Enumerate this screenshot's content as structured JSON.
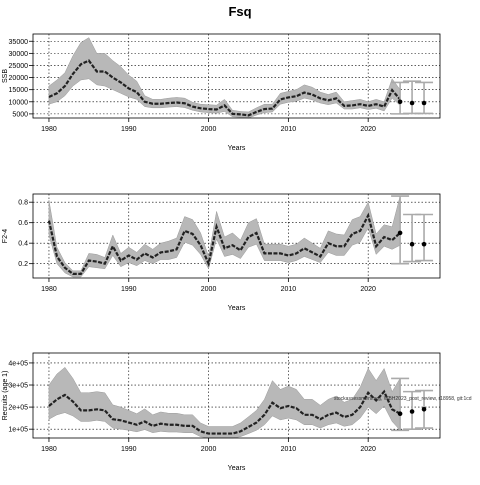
{
  "title": "Fsq",
  "source_note": "stockassessment.org, WBH2023_post_review, r18958, git:1cd",
  "colors": {
    "band": "#b8b8b8",
    "band_edge": "#9a9a9a",
    "line": "#222222",
    "forecast": "#aaaaaa",
    "grid": "#000000"
  },
  "chart_data": [
    {
      "type": "line",
      "ylabel": "SSB",
      "xlabel": "Years",
      "xlim": [
        1978,
        2029
      ],
      "ylim": [
        3300,
        38000
      ],
      "xticks": [
        1980,
        1990,
        2000,
        2010,
        2020
      ],
      "yticks": [
        5000,
        10000,
        15000,
        20000,
        25000,
        30000,
        35000
      ],
      "ytick_labels": [
        "5000",
        "10000",
        "15000",
        "20000",
        "25000",
        "30000",
        "35000"
      ],
      "grid": true,
      "x": [
        1980,
        1981,
        1982,
        1983,
        1984,
        1985,
        1986,
        1987,
        1988,
        1989,
        1990,
        1991,
        1992,
        1993,
        1994,
        1995,
        1996,
        1997,
        1998,
        1999,
        2000,
        2001,
        2002,
        2003,
        2004,
        2005,
        2006,
        2007,
        2008,
        2009,
        2010,
        2011,
        2012,
        2013,
        2014,
        2015,
        2016,
        2017,
        2018,
        2019,
        2020,
        2021,
        2022,
        2023,
        2024
      ],
      "values": [
        12000,
        13500,
        16500,
        21500,
        25500,
        27000,
        22500,
        22500,
        20000,
        18000,
        15500,
        14000,
        10000,
        9200,
        9200,
        9500,
        9700,
        9400,
        8000,
        7300,
        7000,
        6800,
        8500,
        5000,
        4800,
        4400,
        5800,
        7000,
        7200,
        11000,
        11800,
        12300,
        13800,
        13000,
        11400,
        10600,
        11400,
        8300,
        8500,
        9000,
        8300,
        9000,
        8000,
        14800,
        11000
      ],
      "lower": [
        9000,
        10000,
        12500,
        16500,
        19000,
        19500,
        17000,
        16500,
        15000,
        13500,
        12000,
        11000,
        8000,
        7500,
        7500,
        7800,
        8000,
        7600,
        6500,
        5800,
        5500,
        5300,
        6000,
        3800,
        3600,
        3300,
        4500,
        5500,
        5800,
        9000,
        9800,
        10200,
        11500,
        10800,
        9500,
        8800,
        9500,
        7000,
        7000,
        7500,
        6800,
        7300,
        6200,
        11500,
        8500
      ],
      "upper": [
        16500,
        19000,
        22000,
        29000,
        34500,
        36500,
        30000,
        30000,
        27000,
        24500,
        21000,
        18500,
        12500,
        11000,
        11000,
        11500,
        11800,
        11500,
        9800,
        9000,
        8800,
        8600,
        11000,
        6500,
        6000,
        5800,
        7500,
        9000,
        9000,
        13500,
        14300,
        15000,
        17000,
        16000,
        14000,
        13000,
        14000,
        10000,
        10500,
        11000,
        10000,
        11000,
        10000,
        19500,
        15000
      ],
      "forecast": {
        "x": [
          2024,
          2025.5,
          2027
        ],
        "values": [
          10000,
          9500,
          9500
        ],
        "lower": [
          5000,
          5200,
          5200
        ],
        "upper": [
          18000,
          18500,
          18000
        ]
      }
    },
    {
      "type": "line",
      "ylabel": "F2-4",
      "xlabel": "Years",
      "xlim": [
        1978,
        2029
      ],
      "ylim": [
        0.06,
        0.88
      ],
      "xticks": [
        1980,
        1990,
        2000,
        2010,
        2020
      ],
      "yticks": [
        0.2,
        0.4,
        0.6,
        0.8
      ],
      "ytick_labels": [
        "0.2",
        "0.4",
        "0.6",
        "0.8"
      ],
      "grid": true,
      "x": [
        1980,
        1981,
        1982,
        1983,
        1984,
        1985,
        1986,
        1987,
        1988,
        1989,
        1990,
        1991,
        1992,
        1993,
        1994,
        1995,
        1996,
        1997,
        1998,
        1999,
        2000,
        2001,
        2002,
        2003,
        2004,
        2005,
        2006,
        2007,
        2008,
        2009,
        2010,
        2011,
        2012,
        2013,
        2014,
        2015,
        2016,
        2017,
        2018,
        2019,
        2020,
        2021,
        2022,
        2023,
        2024
      ],
      "values": [
        0.62,
        0.27,
        0.16,
        0.1,
        0.1,
        0.23,
        0.22,
        0.2,
        0.37,
        0.23,
        0.28,
        0.24,
        0.3,
        0.26,
        0.31,
        0.32,
        0.34,
        0.52,
        0.49,
        0.38,
        0.2,
        0.56,
        0.35,
        0.38,
        0.33,
        0.46,
        0.5,
        0.3,
        0.3,
        0.3,
        0.28,
        0.3,
        0.35,
        0.31,
        0.27,
        0.4,
        0.37,
        0.37,
        0.49,
        0.52,
        0.67,
        0.37,
        0.46,
        0.43,
        0.5
      ],
      "lower": [
        0.48,
        0.2,
        0.11,
        0.07,
        0.07,
        0.17,
        0.16,
        0.15,
        0.28,
        0.17,
        0.21,
        0.18,
        0.23,
        0.2,
        0.24,
        0.24,
        0.26,
        0.41,
        0.38,
        0.29,
        0.15,
        0.44,
        0.27,
        0.29,
        0.25,
        0.36,
        0.39,
        0.23,
        0.23,
        0.23,
        0.21,
        0.23,
        0.27,
        0.24,
        0.21,
        0.31,
        0.28,
        0.28,
        0.38,
        0.41,
        0.55,
        0.29,
        0.37,
        0.34,
        0.38
      ],
      "upper": [
        0.82,
        0.36,
        0.21,
        0.13,
        0.13,
        0.3,
        0.29,
        0.26,
        0.48,
        0.3,
        0.36,
        0.31,
        0.39,
        0.34,
        0.4,
        0.42,
        0.45,
        0.66,
        0.63,
        0.5,
        0.27,
        0.71,
        0.46,
        0.5,
        0.43,
        0.6,
        0.64,
        0.39,
        0.39,
        0.39,
        0.37,
        0.39,
        0.45,
        0.4,
        0.35,
        0.52,
        0.49,
        0.48,
        0.63,
        0.66,
        0.8,
        0.49,
        0.58,
        0.56,
        0.86
      ],
      "forecast": {
        "x": [
          2024,
          2025.5,
          2027
        ],
        "values": [
          0.5,
          0.39,
          0.39
        ],
        "lower": [
          0.2,
          0.22,
          0.23
        ],
        "upper": [
          0.86,
          0.68,
          0.68
        ]
      }
    },
    {
      "type": "line",
      "ylabel": "Recruits (age 1)",
      "xlabel": "Years",
      "xlim": [
        1978,
        2029
      ],
      "ylim": [
        60000,
        445000
      ],
      "xticks": [
        1980,
        1990,
        2000,
        2010,
        2020
      ],
      "yticks": [
        100000,
        200000,
        300000,
        400000
      ],
      "ytick_labels": [
        "1e+05",
        "2e+05",
        "3e+05",
        "4e+05"
      ],
      "grid": true,
      "x": [
        1980,
        1981,
        1982,
        1983,
        1984,
        1985,
        1986,
        1987,
        1988,
        1989,
        1990,
        1991,
        1992,
        1993,
        1994,
        1995,
        1996,
        1997,
        1998,
        1999,
        2000,
        2001,
        2002,
        2003,
        2004,
        2005,
        2006,
        2007,
        2008,
        2009,
        2010,
        2011,
        2012,
        2013,
        2014,
        2015,
        2016,
        2017,
        2018,
        2019,
        2020,
        2021,
        2022,
        2023,
        2024
      ],
      "values": [
        205000,
        235000,
        255000,
        225000,
        185000,
        185000,
        190000,
        185000,
        145000,
        140000,
        130000,
        120000,
        135000,
        115000,
        125000,
        120000,
        120000,
        115000,
        115000,
        90000,
        80000,
        80000,
        80000,
        80000,
        90000,
        110000,
        130000,
        165000,
        220000,
        195000,
        205000,
        195000,
        165000,
        165000,
        145000,
        165000,
        175000,
        155000,
        165000,
        200000,
        265000,
        230000,
        270000,
        190000,
        170000
      ],
      "lower": [
        145000,
        165000,
        175000,
        160000,
        135000,
        135000,
        140000,
        135000,
        105000,
        100000,
        95000,
        88000,
        98000,
        84000,
        90000,
        87000,
        87000,
        84000,
        84000,
        66000,
        60000,
        60000,
        60000,
        60000,
        66000,
        80000,
        95000,
        120000,
        160000,
        142000,
        150000,
        142000,
        120000,
        120000,
        105000,
        120000,
        128000,
        113000,
        120000,
        150000,
        200000,
        170000,
        205000,
        135000,
        95000
      ],
      "upper": [
        300000,
        350000,
        380000,
        330000,
        265000,
        265000,
        270000,
        265000,
        210000,
        200000,
        185000,
        170000,
        192000,
        165000,
        178000,
        172000,
        172000,
        165000,
        165000,
        128000,
        112000,
        112000,
        112000,
        112000,
        128000,
        156000,
        185000,
        235000,
        320000,
        280000,
        295000,
        280000,
        235000,
        235000,
        208000,
        235000,
        250000,
        222000,
        235000,
        290000,
        375000,
        320000,
        375000,
        270000,
        330000
      ],
      "forecast": {
        "x": [
          2024,
          2025.5,
          2027
        ],
        "values": [
          170000,
          180000,
          190000
        ],
        "lower": [
          95000,
          100000,
          105000
        ],
        "upper": [
          330000,
          270000,
          275000
        ]
      }
    }
  ]
}
